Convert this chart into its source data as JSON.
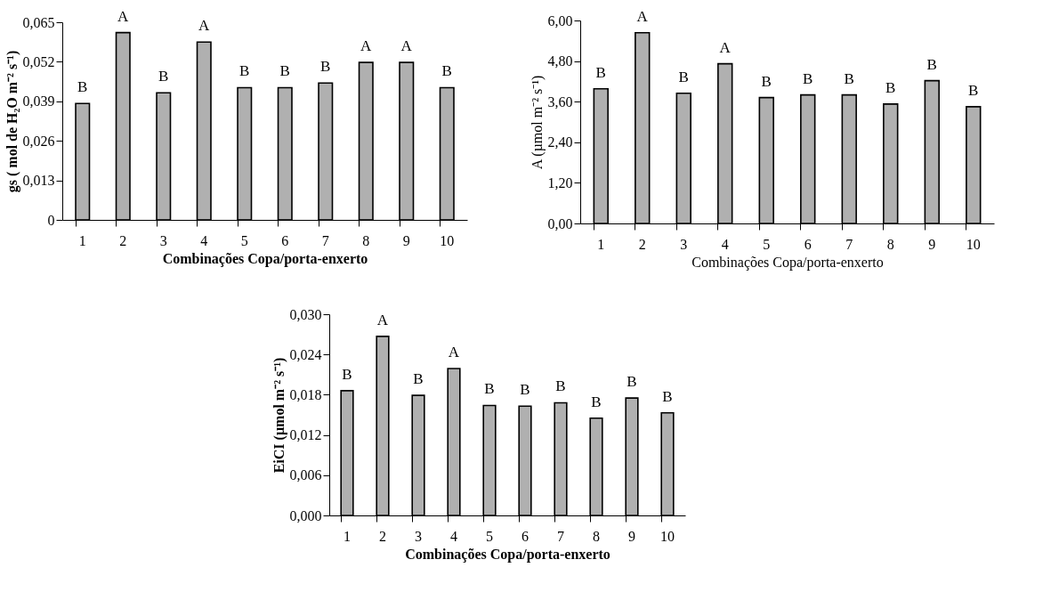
{
  "chart_data": [
    {
      "type": "bar",
      "xlabel": "Combinações Copa/porta-enxerto",
      "ylabel": "gs ( mol de H₂O m⁻² s⁻¹)",
      "categories": [
        "1",
        "2",
        "3",
        "4",
        "5",
        "6",
        "7",
        "8",
        "9",
        "10"
      ],
      "values": [
        0.0383,
        0.0616,
        0.0418,
        0.0585,
        0.0435,
        0.0435,
        0.045,
        0.0518,
        0.0518,
        0.0435
      ],
      "color": "#b0b0b0",
      "ylim": [
        0,
        0.065
      ],
      "yticks": [
        {
          "value": 0,
          "label": "0"
        },
        {
          "value": 0.013,
          "label": "0,013"
        },
        {
          "value": 0.026,
          "label": "0,026"
        },
        {
          "value": 0.039,
          "label": "0,039"
        },
        {
          "value": 0.052,
          "label": "0,052"
        },
        {
          "value": 0.065,
          "label": "0,065"
        }
      ],
      "grid": false,
      "annotations": [
        {
          "text": "B",
          "x": "1",
          "y": 0.0383
        },
        {
          "text": "A",
          "x": "2",
          "y": 0.0616
        },
        {
          "text": "B",
          "x": "3",
          "y": 0.0418
        },
        {
          "text": "A",
          "x": "4",
          "y": 0.0585
        },
        {
          "text": "B",
          "x": "5",
          "y": 0.0435
        },
        {
          "text": "B",
          "x": "6",
          "y": 0.0435
        },
        {
          "text": "B",
          "x": "7",
          "y": 0.045
        },
        {
          "text": "A",
          "x": "8",
          "y": 0.0518
        },
        {
          "text": "A",
          "x": "9",
          "y": 0.0518
        },
        {
          "text": "B",
          "x": "10",
          "y": 0.0435
        }
      ]
    },
    {
      "type": "bar",
      "xlabel": "Combinações Copa/porta-enxerto",
      "ylabel": "A (µmol m⁻² s⁻¹)",
      "categories": [
        "1",
        "2",
        "3",
        "4",
        "5",
        "6",
        "7",
        "8",
        "9",
        "10"
      ],
      "values": [
        3.98,
        5.64,
        3.85,
        4.72,
        3.72,
        3.8,
        3.8,
        3.53,
        4.22,
        3.45
      ],
      "color": "#b0b0b0",
      "ylim": [
        0,
        6
      ],
      "yticks": [
        {
          "value": 0,
          "label": "0,00"
        },
        {
          "value": 1.2,
          "label": "1,20"
        },
        {
          "value": 2.4,
          "label": "2,40"
        },
        {
          "value": 3.6,
          "label": "3,60"
        },
        {
          "value": 4.8,
          "label": "4,80"
        },
        {
          "value": 6,
          "label": "6,00"
        }
      ],
      "grid": false,
      "annotations": [
        {
          "text": "B",
          "x": "1",
          "y": 3.98
        },
        {
          "text": "A",
          "x": "2",
          "y": 5.64
        },
        {
          "text": "B",
          "x": "3",
          "y": 3.85
        },
        {
          "text": "A",
          "x": "4",
          "y": 4.72
        },
        {
          "text": "B",
          "x": "5",
          "y": 3.72
        },
        {
          "text": "B",
          "x": "6",
          "y": 3.8
        },
        {
          "text": "B",
          "x": "7",
          "y": 3.8
        },
        {
          "text": "B",
          "x": "8",
          "y": 3.53
        },
        {
          "text": "B",
          "x": "9",
          "y": 4.22
        },
        {
          "text": "B",
          "x": "10",
          "y": 3.45
        }
      ]
    },
    {
      "type": "bar",
      "xlabel": "Combinações Copa/porta-enxerto",
      "ylabel": "EiCI (µmol m⁻² s⁻¹)",
      "categories": [
        "1",
        "2",
        "3",
        "4",
        "5",
        "6",
        "7",
        "8",
        "9",
        "10"
      ],
      "values": [
        0.0186,
        0.0267,
        0.0179,
        0.0219,
        0.0164,
        0.0163,
        0.0168,
        0.0145,
        0.0175,
        0.0153
      ],
      "color": "#b0b0b0",
      "ylim": [
        0,
        0.03
      ],
      "yticks": [
        {
          "value": 0,
          "label": "0,000"
        },
        {
          "value": 0.006,
          "label": "0,006"
        },
        {
          "value": 0.012,
          "label": "0,012"
        },
        {
          "value": 0.018,
          "label": "0,018"
        },
        {
          "value": 0.024,
          "label": "0,024"
        },
        {
          "value": 0.03,
          "label": "0,030"
        }
      ],
      "grid": false,
      "annotations": [
        {
          "text": "B",
          "x": "1",
          "y": 0.0186
        },
        {
          "text": "A",
          "x": "2",
          "y": 0.0267
        },
        {
          "text": "B",
          "x": "3",
          "y": 0.0179
        },
        {
          "text": "A",
          "x": "4",
          "y": 0.0219
        },
        {
          "text": "B",
          "x": "5",
          "y": 0.0164
        },
        {
          "text": "B",
          "x": "6",
          "y": 0.0163
        },
        {
          "text": "B",
          "x": "7",
          "y": 0.0168
        },
        {
          "text": "B",
          "x": "8",
          "y": 0.0145
        },
        {
          "text": "B",
          "x": "9",
          "y": 0.0175
        },
        {
          "text": "B",
          "x": "10",
          "y": 0.0153
        }
      ]
    }
  ]
}
